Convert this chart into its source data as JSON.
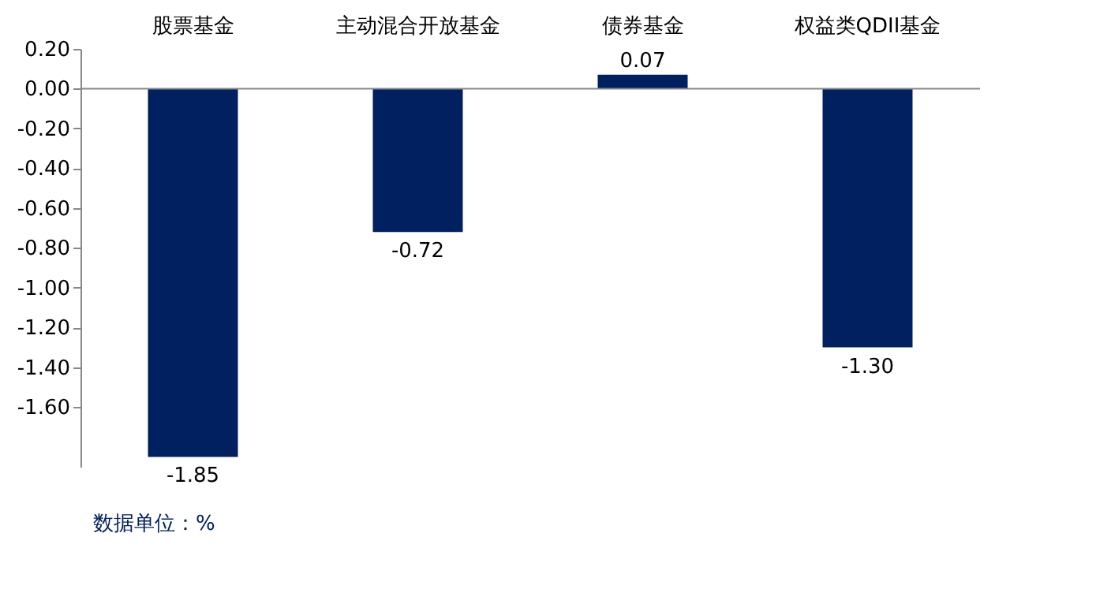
{
  "chart_data": {
    "type": "bar",
    "categories": [
      "股票基金",
      "主动混合开放基金",
      "债券基金",
      "权益类QDII基金"
    ],
    "values": [
      -1.85,
      -0.72,
      0.07,
      -1.3
    ],
    "color": "#002060",
    "ylim": [
      -1.9,
      0.2
    ],
    "yticks": [
      {
        "value": 0.2,
        "label": "0.20"
      },
      {
        "value": 0.0,
        "label": "0.00"
      },
      {
        "value": -0.2,
        "label": "-0.20"
      },
      {
        "value": -0.4,
        "label": "-0.40"
      },
      {
        "value": -0.6,
        "label": "-0.60"
      },
      {
        "value": -0.8,
        "label": "-0.80"
      },
      {
        "value": -1.0,
        "label": "-1.00"
      },
      {
        "value": -1.2,
        "label": "-1.20"
      },
      {
        "value": -1.4,
        "label": "-1.40"
      },
      {
        "value": -1.6,
        "label": "-1.60"
      }
    ],
    "value_labels": [
      "-1.85",
      "-0.72",
      "0.07",
      "-1.30"
    ],
    "grid": false,
    "annotations": [
      "数据单位：%"
    ]
  }
}
